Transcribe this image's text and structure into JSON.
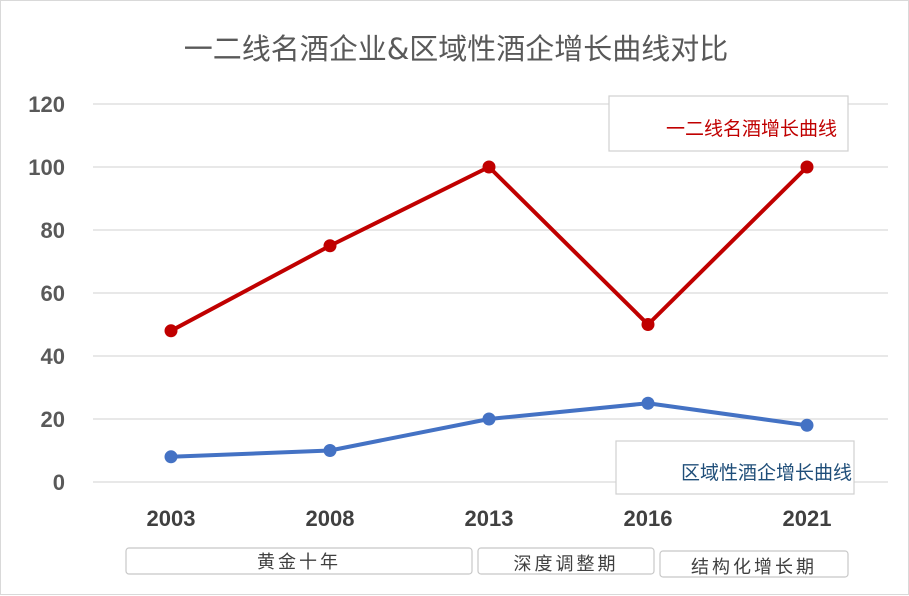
{
  "chart_data": {
    "type": "line",
    "title": "一二线名酒企业&区域性酒企增长曲线对比",
    "categories": [
      "2003",
      "2008",
      "2013",
      "2016",
      "2021"
    ],
    "ylim": [
      0,
      120
    ],
    "yticks": [
      "0",
      "20",
      "40",
      "60",
      "80",
      "100",
      "120"
    ],
    "grid": true,
    "series": [
      {
        "name": "一二线名酒增长曲线",
        "values": [
          48,
          75,
          100,
          50,
          100
        ],
        "color": "#c00000"
      },
      {
        "name": "区域性酒企增长曲线",
        "values": [
          8,
          10,
          20,
          25,
          18
        ],
        "color": "#4472c4"
      }
    ],
    "periods": [
      {
        "label": "黄金十年",
        "from": "2003",
        "to": "2013"
      },
      {
        "label": "深度调整期",
        "from": "2013",
        "to": "2016"
      },
      {
        "label": "结构化增长期",
        "from": "2016",
        "to": "2021"
      }
    ]
  }
}
